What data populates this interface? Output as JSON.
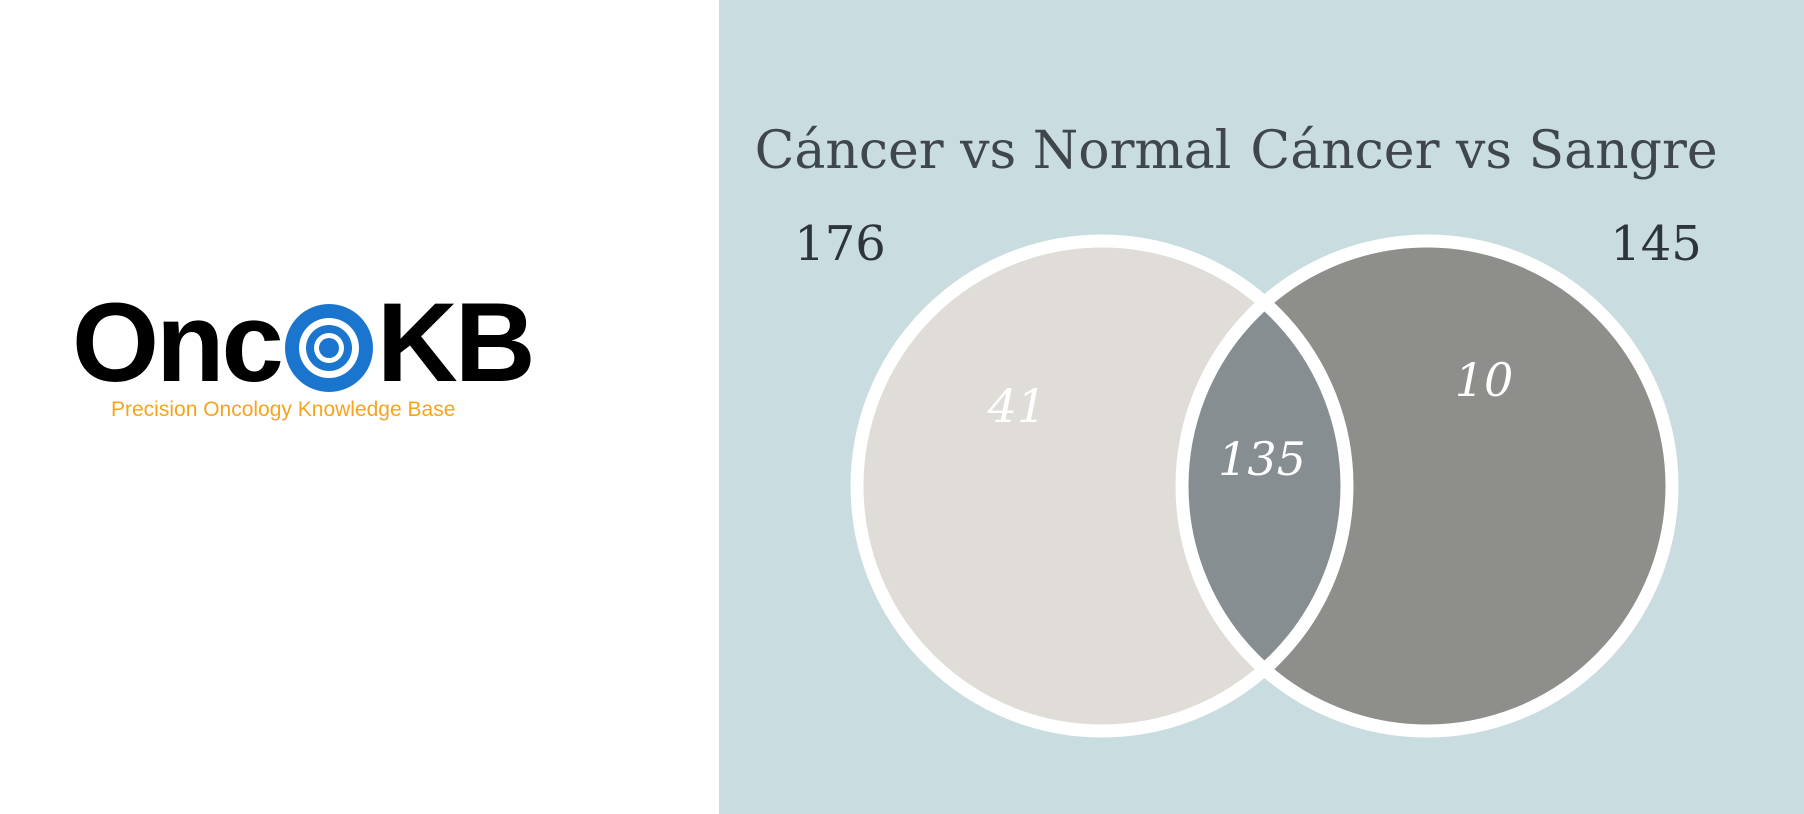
{
  "logo": {
    "word_left": "Onc",
    "word_right": "KB",
    "tagline": "Precision Oncology Knowledge Base",
    "colors": {
      "word": "#000000",
      "tagline": "#f6a41d",
      "target": "#1a75cf"
    }
  },
  "venn": {
    "left_set": {
      "title": "Cáncer vs Normal",
      "total": "176",
      "only_count": "41",
      "color": "#e0dcd7"
    },
    "right_set": {
      "title": "Cáncer vs Sangre",
      "total": "145",
      "only_count": "10",
      "color": "#8e8f8a"
    },
    "intersection": {
      "count": "135",
      "color": "#868e91"
    },
    "background": "#c9dcdf",
    "outline": "#ffffff"
  }
}
